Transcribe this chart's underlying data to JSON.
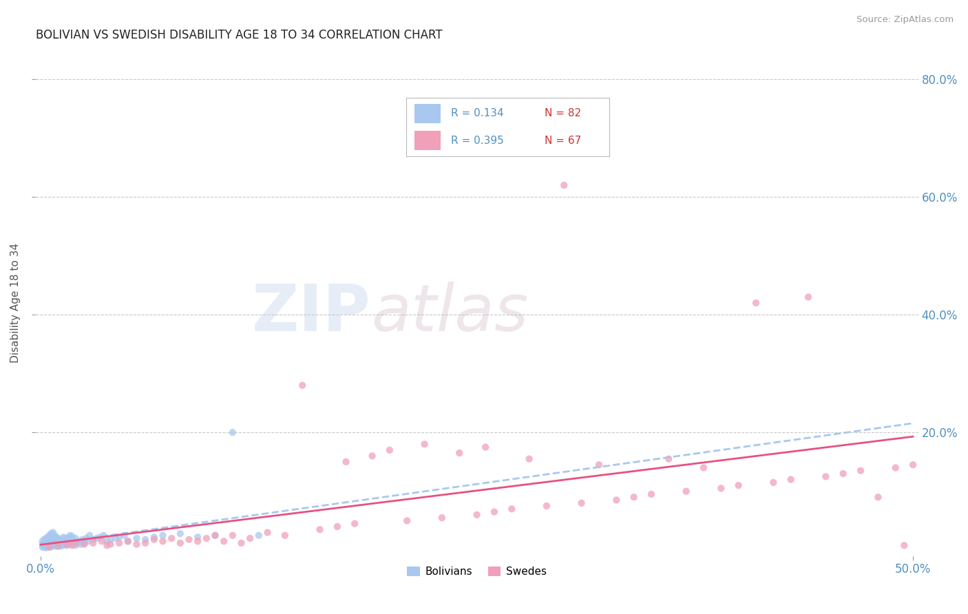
{
  "title": "BOLIVIAN VS SWEDISH DISABILITY AGE 18 TO 34 CORRELATION CHART",
  "source": "Source: ZipAtlas.com",
  "ylabel": "Disability Age 18 to 34",
  "xlim": [
    -0.003,
    0.503
  ],
  "ylim": [
    -0.01,
    0.85
  ],
  "xticks": [
    0.0,
    0.5
  ],
  "yticks": [
    0.2,
    0.4,
    0.6,
    0.8
  ],
  "ytick_labels": [
    "20.0%",
    "40.0%",
    "60.0%",
    "80.0%"
  ],
  "xtick_labels": [
    "0.0%",
    "50.0%"
  ],
  "grid_color": "#c8c8c8",
  "background_color": "#ffffff",
  "bolivians_color": "#a8c8f0",
  "swedes_color": "#f0a0b8",
  "bolivian_line_color": "#a8c8f0",
  "swede_line_color": "#e85080",
  "legend_R_bolivian": "R = 0.134",
  "legend_N_bolivian": "N = 82",
  "legend_R_swede": "R = 0.395",
  "legend_N_swede": "N = 67",
  "watermark_zip": "ZIP",
  "watermark_atlas": "atlas",
  "bolivians_x": [
    0.001,
    0.001,
    0.001,
    0.002,
    0.002,
    0.002,
    0.002,
    0.003,
    0.003,
    0.003,
    0.003,
    0.004,
    0.004,
    0.004,
    0.004,
    0.005,
    0.005,
    0.005,
    0.005,
    0.006,
    0.006,
    0.006,
    0.006,
    0.007,
    0.007,
    0.007,
    0.007,
    0.008,
    0.008,
    0.008,
    0.009,
    0.009,
    0.009,
    0.01,
    0.01,
    0.01,
    0.011,
    0.011,
    0.012,
    0.012,
    0.013,
    0.013,
    0.014,
    0.014,
    0.015,
    0.015,
    0.016,
    0.016,
    0.017,
    0.017,
    0.018,
    0.018,
    0.019,
    0.02,
    0.02,
    0.021,
    0.022,
    0.023,
    0.024,
    0.025,
    0.026,
    0.027,
    0.028,
    0.03,
    0.032,
    0.034,
    0.036,
    0.038,
    0.04,
    0.043,
    0.045,
    0.048,
    0.05,
    0.055,
    0.06,
    0.065,
    0.07,
    0.08,
    0.09,
    0.1,
    0.11,
    0.125
  ],
  "bolivians_y": [
    0.005,
    0.01,
    0.015,
    0.005,
    0.008,
    0.012,
    0.018,
    0.004,
    0.008,
    0.013,
    0.02,
    0.006,
    0.01,
    0.015,
    0.022,
    0.005,
    0.01,
    0.016,
    0.025,
    0.006,
    0.012,
    0.018,
    0.028,
    0.007,
    0.013,
    0.02,
    0.03,
    0.008,
    0.015,
    0.025,
    0.007,
    0.014,
    0.022,
    0.006,
    0.012,
    0.02,
    0.008,
    0.018,
    0.007,
    0.016,
    0.01,
    0.022,
    0.009,
    0.02,
    0.008,
    0.018,
    0.01,
    0.022,
    0.012,
    0.025,
    0.01,
    0.023,
    0.015,
    0.008,
    0.02,
    0.012,
    0.015,
    0.01,
    0.018,
    0.012,
    0.02,
    0.015,
    0.025,
    0.018,
    0.02,
    0.022,
    0.025,
    0.015,
    0.018,
    0.02,
    0.022,
    0.025,
    0.015,
    0.02,
    0.018,
    0.022,
    0.025,
    0.028,
    0.022,
    0.025,
    0.2,
    0.025
  ],
  "swedes_x": [
    0.005,
    0.01,
    0.015,
    0.018,
    0.02,
    0.025,
    0.03,
    0.035,
    0.038,
    0.04,
    0.045,
    0.05,
    0.055,
    0.06,
    0.065,
    0.07,
    0.075,
    0.08,
    0.085,
    0.09,
    0.095,
    0.1,
    0.105,
    0.11,
    0.115,
    0.12,
    0.13,
    0.14,
    0.15,
    0.16,
    0.17,
    0.175,
    0.18,
    0.19,
    0.2,
    0.21,
    0.22,
    0.23,
    0.24,
    0.25,
    0.255,
    0.26,
    0.27,
    0.28,
    0.29,
    0.3,
    0.31,
    0.32,
    0.33,
    0.34,
    0.35,
    0.36,
    0.37,
    0.38,
    0.39,
    0.4,
    0.41,
    0.42,
    0.43,
    0.44,
    0.45,
    0.46,
    0.47,
    0.48,
    0.49,
    0.495,
    0.5
  ],
  "swedes_y": [
    0.005,
    0.008,
    0.01,
    0.008,
    0.012,
    0.01,
    0.012,
    0.015,
    0.008,
    0.01,
    0.012,
    0.015,
    0.01,
    0.012,
    0.018,
    0.015,
    0.02,
    0.012,
    0.018,
    0.015,
    0.02,
    0.025,
    0.015,
    0.025,
    0.012,
    0.02,
    0.03,
    0.025,
    0.28,
    0.035,
    0.04,
    0.15,
    0.045,
    0.16,
    0.17,
    0.05,
    0.18,
    0.055,
    0.165,
    0.06,
    0.175,
    0.065,
    0.07,
    0.155,
    0.075,
    0.62,
    0.08,
    0.145,
    0.085,
    0.09,
    0.095,
    0.155,
    0.1,
    0.14,
    0.105,
    0.11,
    0.42,
    0.115,
    0.12,
    0.43,
    0.125,
    0.13,
    0.135,
    0.09,
    0.14,
    0.008,
    0.145
  ]
}
